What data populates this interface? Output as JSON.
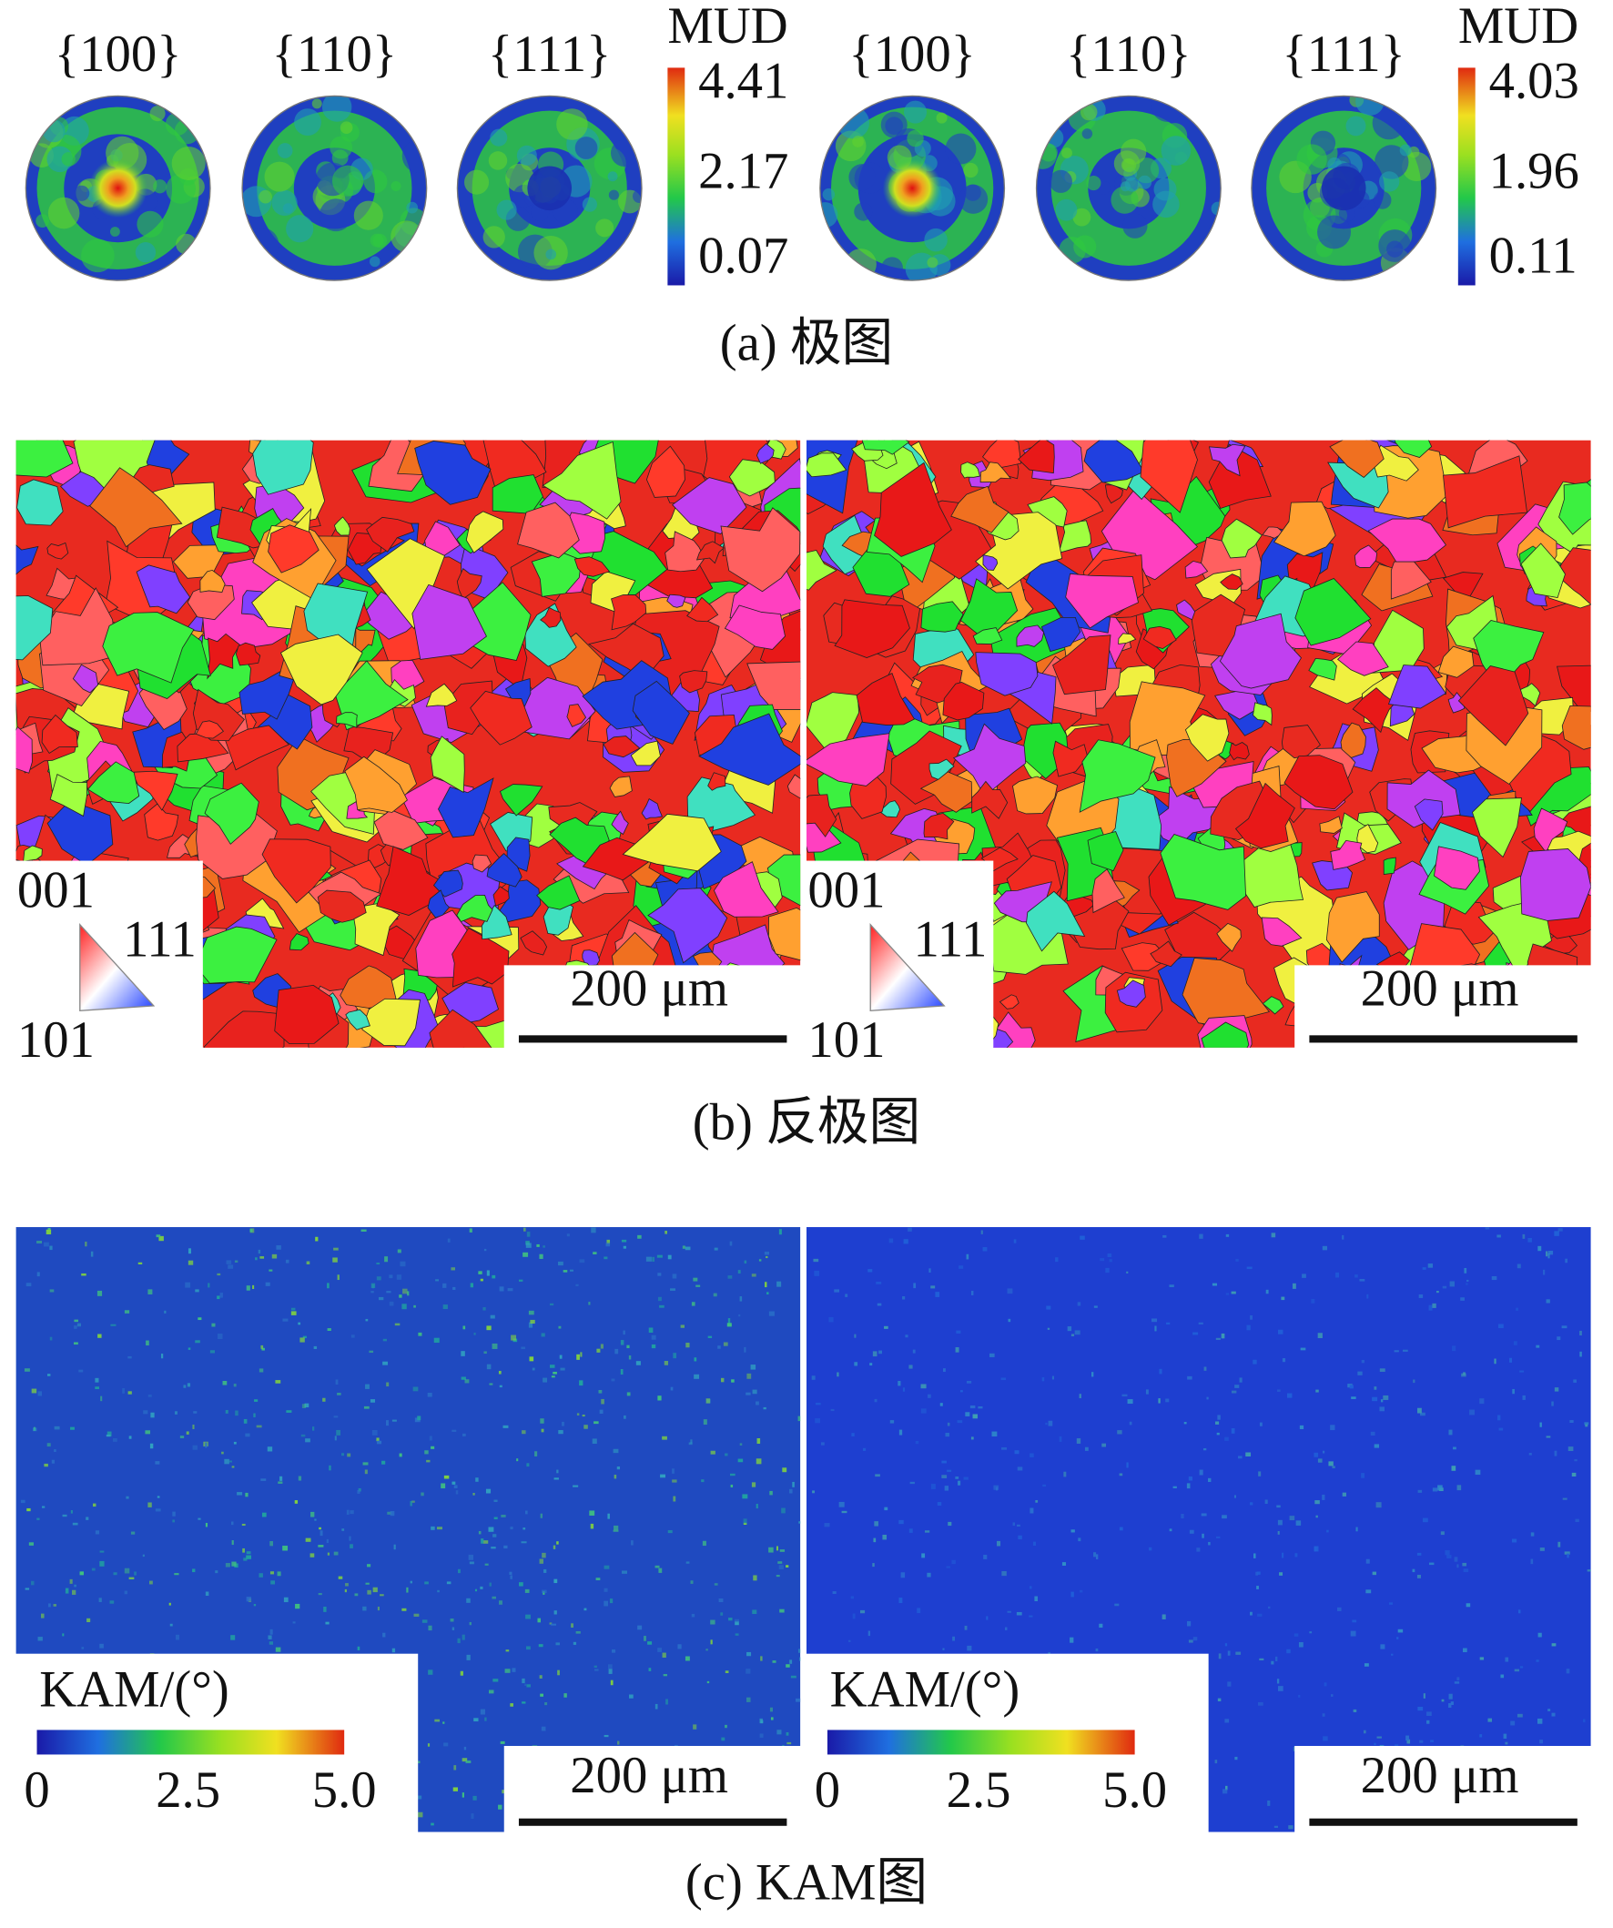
{
  "panel_a": {
    "caption": "(a) 极图",
    "sets": [
      {
        "pole_labels": [
          "{100}",
          "{110}",
          "{111}"
        ],
        "colorbar_title": "MUD",
        "colorbar_ticks": [
          "4.41",
          "2.17",
          "0.07"
        ]
      },
      {
        "pole_labels": [
          "{100}",
          "{110}",
          "{111}"
        ],
        "colorbar_title": "MUD",
        "colorbar_ticks": [
          "4.03",
          "1.96",
          "0.11"
        ]
      }
    ]
  },
  "panel_b": {
    "caption": "(b) 反极图",
    "maps": [
      {
        "legend": [
          "001",
          "111",
          "101"
        ],
        "scale_bar": "200 μm"
      },
      {
        "legend": [
          "001",
          "111",
          "101"
        ],
        "scale_bar": "200 μm"
      }
    ]
  },
  "panel_c": {
    "caption": "(c) KAM图",
    "maps": [
      {
        "colorbar_title": "KAM/(°)",
        "colorbar_ticks": [
          "0",
          "2.5",
          "5.0"
        ],
        "scale_bar": "200 μm"
      },
      {
        "colorbar_title": "KAM/(°)",
        "colorbar_ticks": [
          "0",
          "2.5",
          "5.0"
        ],
        "scale_bar": "200 μm"
      }
    ]
  }
}
